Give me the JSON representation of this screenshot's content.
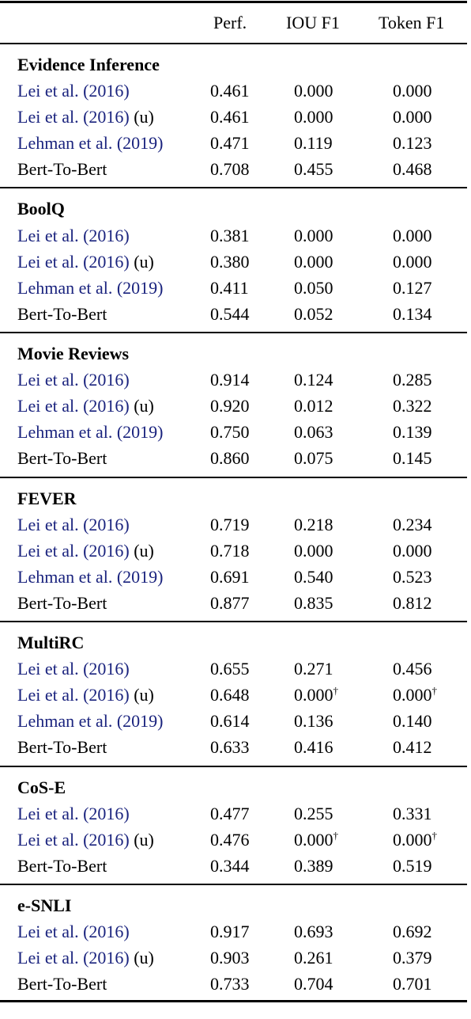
{
  "headers": {
    "name": "",
    "perf": "Perf.",
    "iou": "IOU F1",
    "token": "Token F1"
  },
  "colors": {
    "citation": "#1a237e",
    "text": "#000000"
  },
  "sections": [
    {
      "title": "Evidence Inference",
      "rows": [
        {
          "author": "Lei et al. (",
          "year": "2016",
          "close": ")",
          "suffix": "",
          "perf": "0.461",
          "iou": "0.000",
          "iou_mark": "",
          "token": "0.000",
          "token_mark": ""
        },
        {
          "author": "Lei et al. (",
          "year": "2016",
          "close": ")",
          "suffix": " (u)",
          "perf": "0.461",
          "iou": "0.000",
          "iou_mark": "",
          "token": "0.000",
          "token_mark": ""
        },
        {
          "author": "Lehman et al. (",
          "year": "2019",
          "close": ")",
          "suffix": "",
          "perf": "0.471",
          "iou": "0.119",
          "iou_mark": "",
          "token": "0.123",
          "token_mark": ""
        },
        {
          "plain": "Bert-To-Bert",
          "perf": "0.708",
          "iou": "0.455",
          "iou_mark": "",
          "token": "0.468",
          "token_mark": ""
        }
      ]
    },
    {
      "title": "BoolQ",
      "rows": [
        {
          "author": "Lei et al. (",
          "year": "2016",
          "close": ")",
          "suffix": "",
          "perf": "0.381",
          "iou": "0.000",
          "iou_mark": "",
          "token": "0.000",
          "token_mark": ""
        },
        {
          "author": "Lei et al. (",
          "year": "2016",
          "close": ")",
          "suffix": " (u)",
          "perf": "0.380",
          "iou": "0.000",
          "iou_mark": "",
          "token": "0.000",
          "token_mark": ""
        },
        {
          "author": "Lehman et al. (",
          "year": "2019",
          "close": ")",
          "suffix": "",
          "perf": "0.411",
          "iou": "0.050",
          "iou_mark": "",
          "token": "0.127",
          "token_mark": ""
        },
        {
          "plain": "Bert-To-Bert",
          "perf": "0.544",
          "iou": "0.052",
          "iou_mark": "",
          "token": "0.134",
          "token_mark": ""
        }
      ]
    },
    {
      "title": "Movie Reviews",
      "rows": [
        {
          "author": "Lei et al. (",
          "year": "2016",
          "close": ")",
          "suffix": "",
          "perf": "0.914",
          "iou": "0.124",
          "iou_mark": "",
          "token": "0.285",
          "token_mark": ""
        },
        {
          "author": "Lei et al. (",
          "year": "2016",
          "close": ")",
          "suffix": " (u)",
          "perf": "0.920",
          "iou": "0.012",
          "iou_mark": "",
          "token": "0.322",
          "token_mark": ""
        },
        {
          "author": "Lehman et al. (",
          "year": "2019",
          "close": ")",
          "suffix": "",
          "perf": "0.750",
          "iou": "0.063",
          "iou_mark": "",
          "token": "0.139",
          "token_mark": ""
        },
        {
          "plain": "Bert-To-Bert",
          "perf": "0.860",
          "iou": "0.075",
          "iou_mark": "",
          "token": "0.145",
          "token_mark": ""
        }
      ]
    },
    {
      "title": "FEVER",
      "rows": [
        {
          "author": "Lei et al. (",
          "year": "2016",
          "close": ")",
          "suffix": "",
          "perf": "0.719",
          "iou": "0.218",
          "iou_mark": "",
          "token": "0.234",
          "token_mark": ""
        },
        {
          "author": "Lei et al. (",
          "year": "2016",
          "close": ")",
          "suffix": " (u)",
          "perf": "0.718",
          "iou": "0.000",
          "iou_mark": "",
          "token": "0.000",
          "token_mark": ""
        },
        {
          "author": "Lehman et al. (",
          "year": "2019",
          "close": ")",
          "suffix": "",
          "perf": "0.691",
          "iou": "0.540",
          "iou_mark": "",
          "token": "0.523",
          "token_mark": ""
        },
        {
          "plain": "Bert-To-Bert",
          "perf": "0.877",
          "iou": "0.835",
          "iou_mark": "",
          "token": "0.812",
          "token_mark": ""
        }
      ]
    },
    {
      "title": "MultiRC",
      "rows": [
        {
          "author": "Lei et al. (",
          "year": "2016",
          "close": ")",
          "suffix": "",
          "perf": "0.655",
          "iou": "0.271",
          "iou_mark": "",
          "token": "0.456",
          "token_mark": ""
        },
        {
          "author": "Lei et al. (",
          "year": "2016",
          "close": ")",
          "suffix": " (u)",
          "perf": "0.648",
          "iou": "0.000",
          "iou_mark": "†",
          "token": "0.000",
          "token_mark": "†"
        },
        {
          "author": "Lehman et al. (",
          "year": "2019",
          "close": ")",
          "suffix": "",
          "perf": "0.614",
          "iou": "0.136",
          "iou_mark": "",
          "token": "0.140",
          "token_mark": ""
        },
        {
          "plain": "Bert-To-Bert",
          "perf": "0.633",
          "iou": "0.416",
          "iou_mark": "",
          "token": "0.412",
          "token_mark": ""
        }
      ]
    },
    {
      "title": "CoS-E",
      "rows": [
        {
          "author": "Lei et al. (",
          "year": "2016",
          "close": ")",
          "suffix": "",
          "perf": "0.477",
          "iou": "0.255",
          "iou_mark": "",
          "token": "0.331",
          "token_mark": ""
        },
        {
          "author": "Lei et al. (",
          "year": "2016",
          "close": ")",
          "suffix": " (u)",
          "perf": "0.476",
          "iou": "0.000",
          "iou_mark": "†",
          "token": "0.000",
          "token_mark": "†"
        },
        {
          "plain": "Bert-To-Bert",
          "perf": "0.344",
          "iou": "0.389",
          "iou_mark": "",
          "token": "0.519",
          "token_mark": ""
        }
      ]
    },
    {
      "title": "e-SNLI",
      "rows": [
        {
          "author": "Lei et al. (",
          "year": "2016",
          "close": ")",
          "suffix": "",
          "perf": "0.917",
          "iou": "0.693",
          "iou_mark": "",
          "token": "0.692",
          "token_mark": ""
        },
        {
          "author": "Lei et al. (",
          "year": "2016",
          "close": ")",
          "suffix": " (u)",
          "perf": "0.903",
          "iou": "0.261",
          "iou_mark": "",
          "token": "0.379",
          "token_mark": ""
        },
        {
          "plain": "Bert-To-Bert",
          "perf": "0.733",
          "iou": "0.704",
          "iou_mark": "",
          "token": "0.701",
          "token_mark": ""
        }
      ]
    }
  ]
}
